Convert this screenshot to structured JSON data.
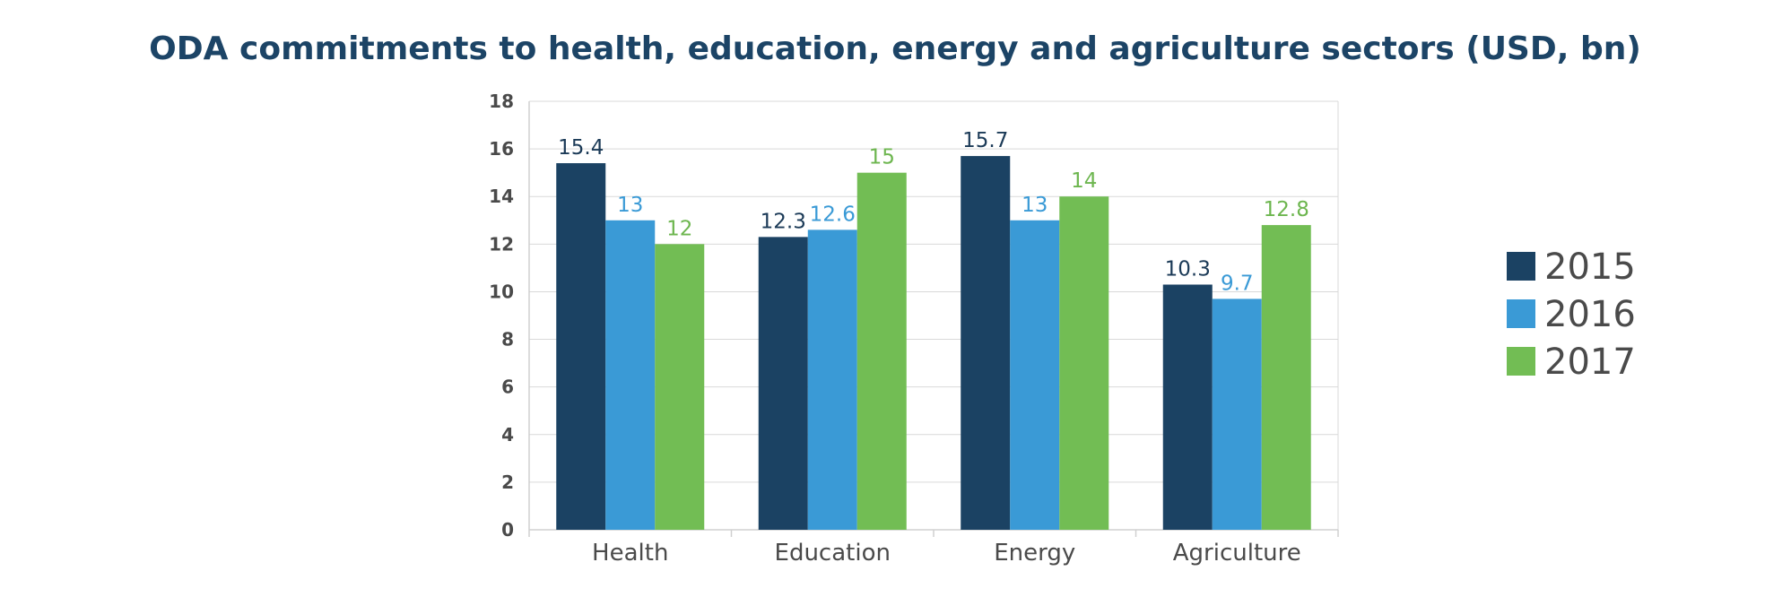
{
  "chart_data": {
    "type": "bar",
    "title": "ODA commitments to health, education, energy and agriculture sectors (USD, bn)",
    "xlabel": "",
    "ylabel": "",
    "categories": [
      "Health",
      "Education",
      "Energy",
      "Agriculture"
    ],
    "series": [
      {
        "name": "2015",
        "values": [
          15.4,
          12.3,
          15.7,
          10.3
        ],
        "color": "#1b4263",
        "label_color": "#1b3a57"
      },
      {
        "name": "2016",
        "values": [
          13,
          12.6,
          13,
          9.7
        ],
        "color": "#3a9ad6",
        "label_color": "#3a9ad6"
      },
      {
        "name": "2017",
        "values": [
          12,
          15,
          14,
          12.8
        ],
        "color": "#72bd54",
        "label_color": "#6db64f"
      }
    ],
    "ylim": [
      0,
      18
    ],
    "yticks": [
      0,
      2,
      4,
      6,
      8,
      10,
      12,
      14,
      16,
      18
    ],
    "grid": true,
    "legend": "right"
  }
}
